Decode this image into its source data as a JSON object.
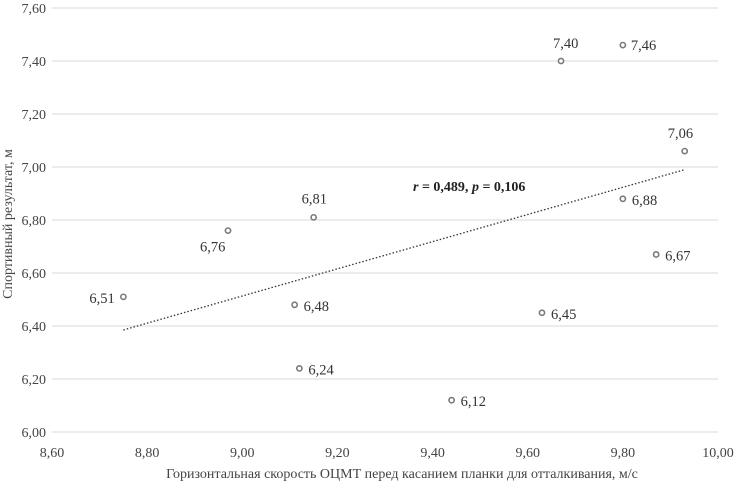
{
  "chart_data": {
    "type": "scatter",
    "title": "",
    "xlabel": "Горизонтальная скорость ОЦМТ перед касанием планки для отталкивания, м/с",
    "ylabel": "Спортивный результат, м",
    "xlim": [
      8.6,
      10.0
    ],
    "ylim": [
      6.0,
      7.6
    ],
    "x_ticks": [
      "8,60",
      "8,80",
      "9,00",
      "9,20",
      "9,40",
      "9,60",
      "9,80",
      "10,00"
    ],
    "y_ticks": [
      "6,00",
      "6,20",
      "6,40",
      "6,60",
      "6,80",
      "7,00",
      "7,20",
      "7,40",
      "7,60"
    ],
    "grid": "horizontal",
    "legend": "none",
    "points": [
      {
        "x": 8.75,
        "y": 6.51,
        "label": "6,51"
      },
      {
        "x": 8.97,
        "y": 6.76,
        "label": "6,76"
      },
      {
        "x": 9.15,
        "y": 6.81,
        "label": "6,81"
      },
      {
        "x": 9.11,
        "y": 6.48,
        "label": "6,48"
      },
      {
        "x": 9.12,
        "y": 6.24,
        "label": "6,24"
      },
      {
        "x": 9.44,
        "y": 6.12,
        "label": "6,12"
      },
      {
        "x": 9.63,
        "y": 6.45,
        "label": "6,45"
      },
      {
        "x": 9.67,
        "y": 7.4,
        "label": "7,40"
      },
      {
        "x": 9.8,
        "y": 7.46,
        "label": "7,46"
      },
      {
        "x": 9.8,
        "y": 6.88,
        "label": "6,88"
      },
      {
        "x": 9.87,
        "y": 6.67,
        "label": "6,67"
      },
      {
        "x": 9.93,
        "y": 7.06,
        "label": "7,06"
      }
    ],
    "trendline": {
      "x": [
        8.75,
        9.93
      ],
      "y": [
        6.385,
        6.99
      ],
      "style": "dotted"
    },
    "annotation": {
      "r_symbol": "r",
      "r_text": " = 0,489, ",
      "p_symbol": "p",
      "p_text": " = 0,106"
    },
    "colors": {
      "point": "#7a7a7a",
      "grid": "#d9d9d9",
      "trend": "#333333"
    }
  }
}
